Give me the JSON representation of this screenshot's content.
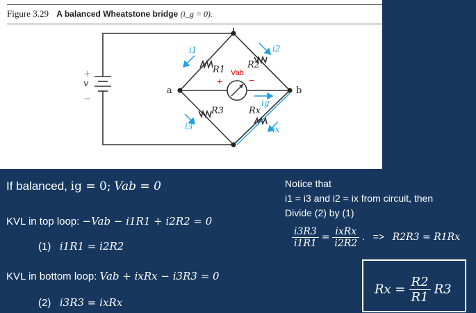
{
  "figure": {
    "number": "Figure 3.29",
    "caption": "A balanced Wheatstone bridge",
    "condition": "(i_g = 0).",
    "labels": {
      "node_a": "a",
      "node_b": "b",
      "source": "v",
      "plus": "+",
      "minus": "−",
      "i1": "i1",
      "i2": "i2",
      "i3": "i3",
      "ix": "ix",
      "ig": "ig",
      "R1": "R1",
      "R2": "R2",
      "R3": "R3",
      "Rx": "Rx",
      "vab": "Vab",
      "vab_plus": "+",
      "vab_minus": "−"
    }
  },
  "colors": {
    "background": "#17375e",
    "annotation_blue": "#1ea0e0",
    "annotation_red": "#e00000"
  },
  "balanced": {
    "prefix": "If balanced,",
    "ig": "ig = 0;",
    "vab": "Vab = 0"
  },
  "kvl_top": {
    "label": "KVL in top loop:",
    "eq": "−Vab − i1R1 + i2R2 = 0"
  },
  "eq1": {
    "tag": "(1)",
    "eq": "i1R1 = i2R2"
  },
  "kvl_bottom": {
    "label": "KVL in bottom loop:",
    "eq": "Vab + ixRx − i3R3 = 0"
  },
  "eq2": {
    "tag": "(2)",
    "eq": "i3R3 = ixRx"
  },
  "notice": {
    "line1": "Notice that",
    "line2": "i1 = i3 and i2 = ix from circuit, then",
    "line3": "Divide (2) by (1)"
  },
  "ratio": {
    "lhs_num": "i3R3",
    "lhs_den": "i1R1",
    "rhs_num": "ixRx",
    "rhs_den": "i2R2",
    "arrow": "=>",
    "result": "R2R3 = R1Rx"
  },
  "final": {
    "lhs": "Rx =",
    "num": "R2",
    "den": "R1",
    "factor": "R3"
  }
}
